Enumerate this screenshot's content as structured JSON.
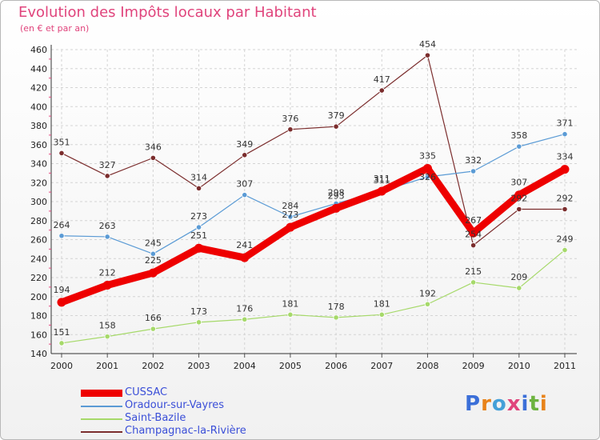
{
  "header": {
    "title": "Evolution des Impôts locaux par Habitant",
    "subtitle": "(en € et par an)"
  },
  "logo": {
    "text": "Proxiti",
    "colors": [
      "#3b6fd8",
      "#e8831a",
      "#44a0d8",
      "#e0447c",
      "#3b6fd8",
      "#6db33f",
      "#e8831a"
    ]
  },
  "chart_data": {
    "type": "line",
    "title": "Evolution des Impôts locaux par Habitant",
    "subtitle": "(en € et par an)",
    "x": [
      "2000",
      "2001",
      "2002",
      "2003",
      "2004",
      "2005",
      "2006",
      "2007",
      "2008",
      "2009",
      "2010",
      "2011"
    ],
    "ylim": [
      140,
      460
    ],
    "yticks": [
      140,
      160,
      180,
      200,
      220,
      240,
      260,
      280,
      300,
      320,
      340,
      360,
      380,
      400,
      420,
      440,
      460
    ],
    "grid": true,
    "legend": "bottom-left",
    "series": [
      {
        "name": "CUSSAC",
        "color": "#ee0000",
        "values": [
          194,
          212,
          225,
          251,
          241,
          273,
          293,
          311,
          335,
          267,
          307,
          334
        ],
        "labels": [
          "194",
          "212",
          "225",
          "251",
          "241",
          "273",
          "293",
          "311",
          "335",
          "267",
          "307",
          "334"
        ]
      },
      {
        "name": "Oradour-sur-Vayres",
        "color": "#5b9bd5",
        "values": [
          264,
          263,
          245,
          273,
          307,
          284,
          298,
          311,
          326,
          332,
          358,
          371
        ],
        "labels": [
          "264",
          "263",
          "245",
          "273",
          "307",
          "284",
          "298",
          "311",
          "326",
          "332",
          "358",
          "371"
        ]
      },
      {
        "name": "Saint-Bazile",
        "color": "#a6d96a",
        "values": [
          151,
          158,
          166,
          173,
          176,
          181,
          178,
          181,
          192,
          215,
          209,
          249
        ],
        "labels": [
          "151",
          "158",
          "166",
          "173",
          "176",
          "181",
          "178",
          "181",
          "192",
          "215",
          "209",
          "249"
        ]
      },
      {
        "name": "Champagnac-la-Rivière",
        "color": "#7b2d2d",
        "values": [
          351,
          327,
          346,
          314,
          349,
          376,
          379,
          417,
          454,
          254,
          292,
          292
        ],
        "labels": [
          "351",
          "327",
          "346",
          "314",
          "349",
          "376",
          "379",
          "417",
          "454",
          "254",
          "292",
          "292"
        ]
      }
    ]
  }
}
